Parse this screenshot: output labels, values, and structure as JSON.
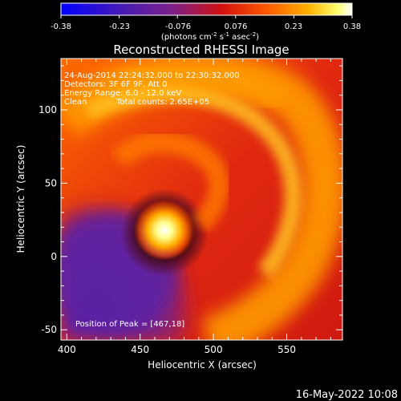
{
  "chart_data": {
    "type": "heatmap",
    "title": "Reconstructed RHESSI Image",
    "xlabel": "Heliocentric X (arcsec)",
    "ylabel": "Heliocentric Y (arcsec)",
    "xlim": [
      396,
      588
    ],
    "ylim": [
      -57,
      135
    ],
    "x_ticks": [
      400,
      450,
      500,
      550
    ],
    "y_ticks": [
      -50,
      0,
      50,
      100
    ],
    "colorbar": {
      "ticks": [
        "-0.38",
        "-0.23",
        "-0.076",
        "0.076",
        "0.23",
        "0.38"
      ],
      "range": [
        -0.38,
        0.38
      ],
      "label_prefix": "(photons cm",
      "label_exp1": "-2",
      "label_mid": " s",
      "label_exp2": "-1",
      "label_mid2": " asec",
      "label_exp3": "-2",
      "label_suffix": ")"
    },
    "annotations": {
      "time_range": "24-Aug-2014 22:24:32.000 to 22:30:32.000",
      "detectors": "Detectors: 3F 6F 9F, Att 0",
      "energy_range": "Energy Range: 6.0 - 12.0 keV",
      "clean": "Clean",
      "total_counts": "Total counts: 2.65E+05",
      "peak": "Position of Peak = [467,18]"
    },
    "peak_position": [
      467,
      18
    ],
    "colormap": [
      "#0000ff",
      "#5a1aa6",
      "#7a2c8a",
      "#c01818",
      "#ff4a00",
      "#ff9a00",
      "#ffff80",
      "#ffffff"
    ]
  },
  "footer": {
    "date": "16-May-2022 10:08"
  }
}
